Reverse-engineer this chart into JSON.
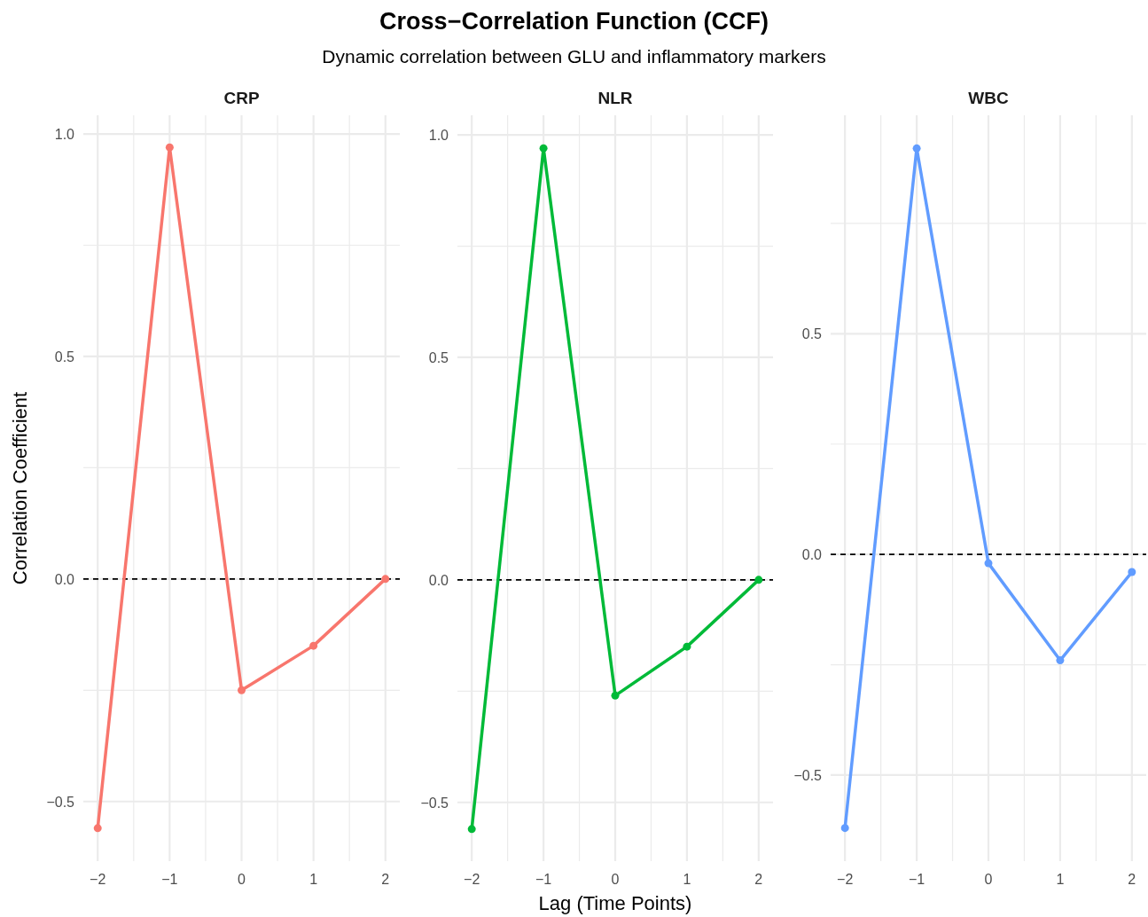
{
  "chart_data": [
    {
      "type": "line",
      "title": "CRP",
      "ylabel": "Correlation Coefficient",
      "annotations": [
        "Cross−Correlation Function (CCF)",
        "Dynamic correlation between GLU and inflammatory markers"
      ],
      "x": [
        -2,
        -1,
        0,
        1,
        2
      ],
      "series": [
        {
          "color": "#f8766d",
          "values": [
            -0.56,
            0.97,
            -0.25,
            -0.15,
            0.0
          ]
        }
      ],
      "xlim": [
        -2.2,
        2.2
      ],
      "xticks": [
        {
          "value": -2,
          "label": "−2"
        },
        {
          "value": -1.5,
          "label": null
        },
        {
          "value": -1,
          "label": "−1"
        },
        {
          "value": -0.5,
          "label": null
        },
        {
          "value": 0,
          "label": "0"
        },
        {
          "value": 0.5,
          "label": null
        },
        {
          "value": 1,
          "label": "1"
        },
        {
          "value": 1.5,
          "label": null
        },
        {
          "value": 2,
          "label": "2"
        }
      ],
      "ylim": [
        -0.634,
        1.042
      ],
      "yticks": [
        {
          "value": -0.5,
          "label": "−0.5"
        },
        {
          "value": -0.25,
          "label": null
        },
        {
          "value": 0,
          "label": "0.0"
        },
        {
          "value": 0.25,
          "label": null
        },
        {
          "value": 0.5,
          "label": "0.5"
        },
        {
          "value": 0.75,
          "label": null
        },
        {
          "value": 1,
          "label": "1.0"
        }
      ],
      "ref_lines": [
        {
          "axis": "y",
          "value": 0,
          "color": "#000000",
          "line_style": "dashed"
        }
      ],
      "grid": true,
      "marker": "circle",
      "line_style": "solid"
    },
    {
      "type": "line",
      "title": "NLR",
      "xlabel": "Lag (Time Points)",
      "x": [
        -2,
        -1,
        0,
        1,
        2
      ],
      "series": [
        {
          "color": "#00ba38",
          "values": [
            -0.56,
            0.97,
            -0.26,
            -0.15,
            0.0
          ]
        }
      ],
      "xlim": [
        -2.2,
        2.2
      ],
      "xticks": [
        {
          "value": -2,
          "label": "−2"
        },
        {
          "value": -1.5,
          "label": null
        },
        {
          "value": -1,
          "label": "−1"
        },
        {
          "value": -0.5,
          "label": null
        },
        {
          "value": 0,
          "label": "0"
        },
        {
          "value": 0.5,
          "label": null
        },
        {
          "value": 1,
          "label": "1"
        },
        {
          "value": 1.5,
          "label": null
        },
        {
          "value": 2,
          "label": "2"
        }
      ],
      "ylim": [
        -0.632,
        1.044
      ],
      "yticks": [
        {
          "value": -0.5,
          "label": "−0.5"
        },
        {
          "value": -0.25,
          "label": null
        },
        {
          "value": 0,
          "label": "0.0"
        },
        {
          "value": 0.25,
          "label": null
        },
        {
          "value": 0.5,
          "label": "0.5"
        },
        {
          "value": 0.75,
          "label": null
        },
        {
          "value": 1,
          "label": "1.0"
        }
      ],
      "ref_lines": [
        {
          "axis": "y",
          "value": 0,
          "color": "#000000",
          "line_style": "dashed"
        }
      ],
      "grid": true,
      "marker": "circle",
      "line_style": "solid"
    },
    {
      "type": "line",
      "title": "WBC",
      "x": [
        -2,
        -1,
        0,
        1,
        2
      ],
      "series": [
        {
          "color": "#619cff",
          "values": [
            -0.62,
            0.92,
            -0.02,
            -0.24,
            -0.04
          ]
        }
      ],
      "xlim": [
        -2.2,
        2.2
      ],
      "xticks": [
        {
          "value": -2,
          "label": "−2"
        },
        {
          "value": -1.5,
          "label": null
        },
        {
          "value": -1,
          "label": "−1"
        },
        {
          "value": -0.5,
          "label": null
        },
        {
          "value": 0,
          "label": "0"
        },
        {
          "value": 0.5,
          "label": null
        },
        {
          "value": 1,
          "label": "1"
        },
        {
          "value": 1.5,
          "label": null
        },
        {
          "value": 2,
          "label": "2"
        }
      ],
      "ylim": [
        -0.695,
        0.995
      ],
      "yticks": [
        {
          "value": -0.5,
          "label": "−0.5"
        },
        {
          "value": -0.25,
          "label": null
        },
        {
          "value": 0,
          "label": "0.0"
        },
        {
          "value": 0.25,
          "label": null
        },
        {
          "value": 0.5,
          "label": "0.5"
        },
        {
          "value": 0.75,
          "label": null
        }
      ],
      "ref_lines": [
        {
          "axis": "y",
          "value": 0,
          "color": "#000000",
          "line_style": "dashed"
        }
      ],
      "grid": true,
      "marker": "circle",
      "line_style": "solid"
    }
  ]
}
